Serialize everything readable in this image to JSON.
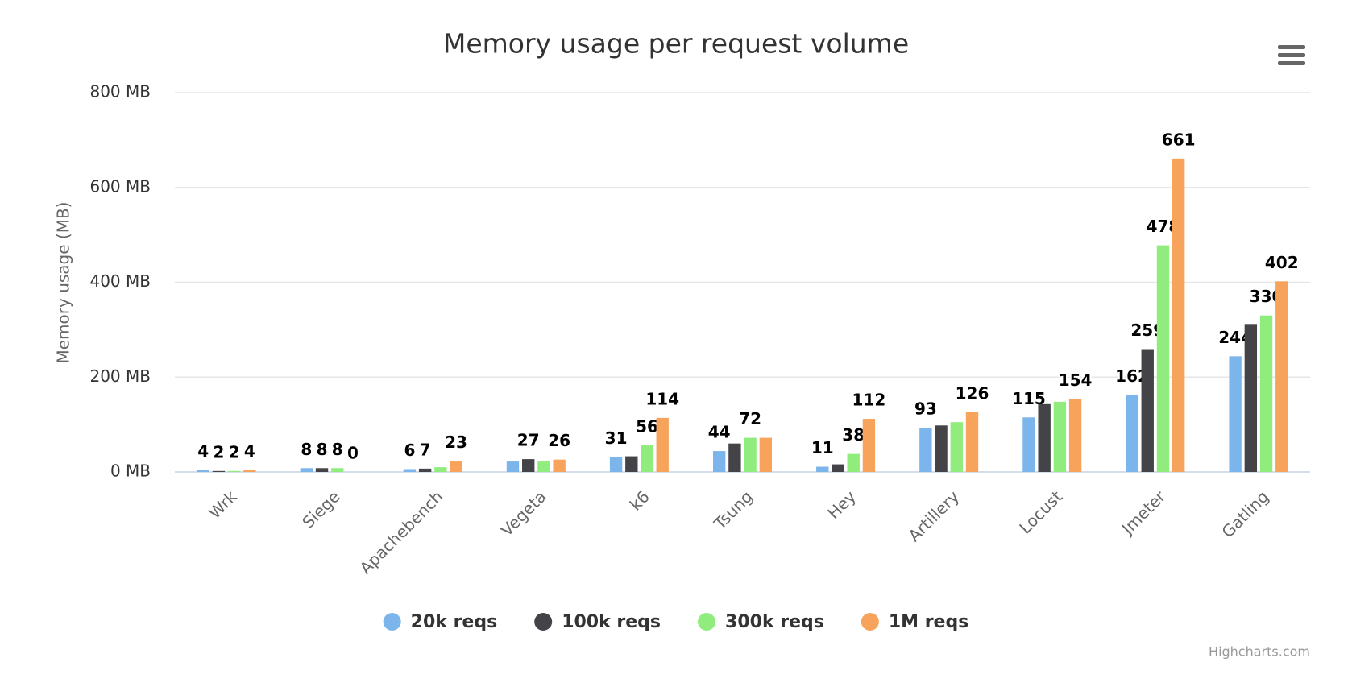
{
  "chart_data": {
    "type": "bar",
    "title": "Memory usage per request volume",
    "y_axis_title": "Memory usage (MB)",
    "credit": "Highcharts.com",
    "categories": [
      "Wrk",
      "Siege",
      "Apachebench",
      "Vegeta",
      "k6",
      "Tsung",
      "Hey",
      "Artillery",
      "Locust",
      "Jmeter",
      "Gatling"
    ],
    "series": [
      {
        "name": "20k reqs",
        "color": "#7cb5ec",
        "values": [
          4,
          8,
          6,
          22,
          31,
          44,
          11,
          93,
          115,
          162,
          244
        ],
        "value_labels": [
          "4",
          "8",
          "6",
          null,
          "31",
          "44",
          "11",
          "93",
          "115",
          "162",
          "244"
        ]
      },
      {
        "name": "100k reqs",
        "color": "#434348",
        "values": [
          2,
          8,
          7,
          27,
          33,
          60,
          16,
          98,
          143,
          259,
          312
        ],
        "value_labels": [
          "2",
          "8",
          "7",
          "27",
          null,
          null,
          null,
          null,
          null,
          "259",
          null
        ]
      },
      {
        "name": "300k reqs",
        "color": "#90ed7d",
        "values": [
          2,
          8,
          10,
          22,
          56,
          72,
          38,
          105,
          148,
          478,
          330
        ],
        "value_labels": [
          "2",
          "8",
          null,
          null,
          "56",
          "72",
          "38",
          null,
          null,
          "478",
          "330"
        ]
      },
      {
        "name": "1M reqs",
        "color": "#f7a35c",
        "values": [
          4,
          0,
          23,
          26,
          114,
          72,
          112,
          126,
          154,
          661,
          402
        ],
        "value_labels": [
          "4",
          "0",
          "23",
          "26",
          "114",
          null,
          "112",
          "126",
          "154",
          "661",
          "402"
        ]
      }
    ],
    "ylim": [
      0,
      800
    ],
    "yticks": [
      {
        "value": 0,
        "label": "0 MB"
      },
      {
        "value": 200,
        "label": "200 MB"
      },
      {
        "value": 400,
        "label": "400 MB"
      },
      {
        "value": 600,
        "label": "600 MB"
      },
      {
        "value": 800,
        "label": "800 MB"
      }
    ],
    "grid": true,
    "legend": "bottom"
  }
}
